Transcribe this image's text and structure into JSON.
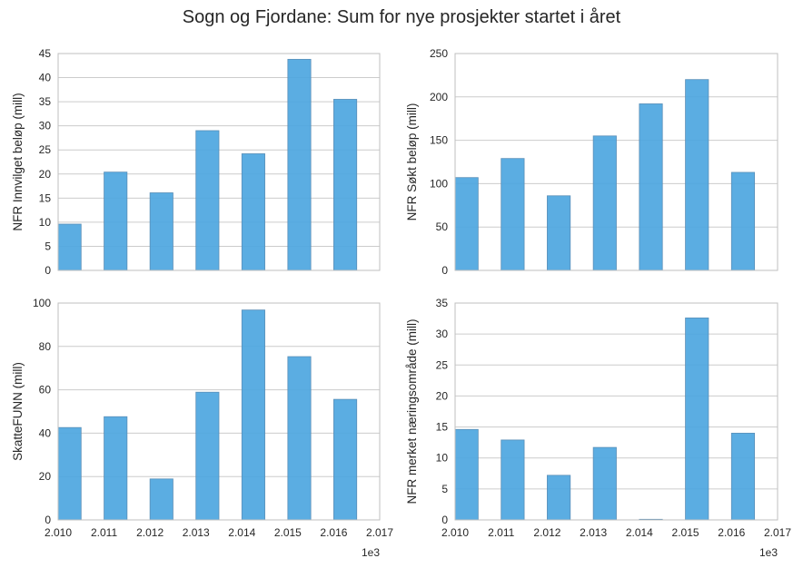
{
  "figure": {
    "title": "Sogn og Fjordane: Sum for nye prosjekter startet i året",
    "bar_color": "#4da6e0",
    "bar_edge_color": "#5a8fb8",
    "grid_color": "#cccccc",
    "frame_color": "#bfbfbf"
  },
  "chart_data": [
    {
      "type": "bar",
      "position": "top-left",
      "ylabel": "NFR Innvilget beløp (mill)",
      "x": [
        2.01,
        2.011,
        2.012,
        2.013,
        2.014,
        2.015,
        2.016
      ],
      "values": [
        9.6,
        20.4,
        16.1,
        29.0,
        24.2,
        43.8,
        35.5
      ],
      "xlim": [
        2.01,
        2.017
      ],
      "ylim": [
        0,
        45
      ],
      "yticks": [
        "0",
        "5",
        "10",
        "15",
        "20",
        "25",
        "30",
        "35",
        "40",
        "45"
      ],
      "xticks": [],
      "x_offset_label": "",
      "grid": true
    },
    {
      "type": "bar",
      "position": "top-right",
      "ylabel": "NFR Søkt beløp (mill)",
      "x": [
        2.01,
        2.011,
        2.012,
        2.013,
        2.014,
        2.015,
        2.016
      ],
      "values": [
        107,
        129,
        86,
        155,
        192,
        220,
        113
      ],
      "xlim": [
        2.01,
        2.017
      ],
      "ylim": [
        0,
        250
      ],
      "yticks": [
        "0",
        "50",
        "100",
        "150",
        "200",
        "250"
      ],
      "xticks": [],
      "x_offset_label": "",
      "grid": true
    },
    {
      "type": "bar",
      "position": "bottom-left",
      "ylabel": "SkatteFUNN (mill)",
      "x": [
        2.01,
        2.011,
        2.012,
        2.013,
        2.014,
        2.015,
        2.016
      ],
      "values": [
        42.6,
        47.6,
        18.9,
        58.9,
        96.8,
        75.3,
        55.6
      ],
      "xlim": [
        2.01,
        2.017
      ],
      "ylim": [
        0,
        100
      ],
      "yticks": [
        "0",
        "20",
        "40",
        "60",
        "80",
        "100"
      ],
      "xticks": [
        "2.010",
        "2.011",
        "2.012",
        "2.013",
        "2.014",
        "2.015",
        "2.016",
        "2.017"
      ],
      "x_offset_label": "1e3",
      "grid": true
    },
    {
      "type": "bar",
      "position": "bottom-right",
      "ylabel": "NFR merket næringsområde (mill)",
      "x": [
        2.01,
        2.011,
        2.012,
        2.013,
        2.014,
        2.015,
        2.016
      ],
      "values": [
        14.6,
        12.9,
        7.2,
        11.7,
        0.1,
        32.6,
        14.0
      ],
      "xlim": [
        2.01,
        2.017
      ],
      "ylim": [
        0,
        35
      ],
      "yticks": [
        "0",
        "5",
        "10",
        "15",
        "20",
        "25",
        "30",
        "35"
      ],
      "xticks": [
        "2.010",
        "2.011",
        "2.012",
        "2.013",
        "2.014",
        "2.015",
        "2.016",
        "2.017"
      ],
      "x_offset_label": "1e3",
      "grid": true
    }
  ]
}
